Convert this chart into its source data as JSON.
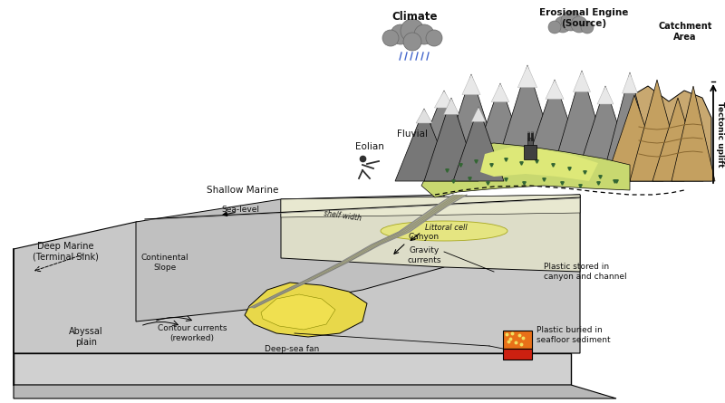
{
  "bg_color": "#f5f5f0",
  "figure_width": 8.0,
  "figure_height": 4.45,
  "labels": {
    "climate": "Climate",
    "erosional_engine": "Erosional Engine\n(Source)",
    "catchment_area": "Catchment\nArea",
    "eolian": "Eolian",
    "fluvial": "Fluvial",
    "shallow_marine": "Shallow Marine",
    "deep_marine": "Deep Marine\n(Terminal Sink)",
    "sea_level": "Sea-level",
    "continental_slope": "Continental\nSlope",
    "abyssal_plain": "Abyssal\nplain",
    "contour_currents": "Contour currents\n(reworked)",
    "deep_sea_fan": "Deep-sea fan",
    "canyon": "Canyon",
    "gravity_currents": "Gravity\ncurrents",
    "plastic_canyon": "Plastic stored in\ncanyon and channel",
    "plastic_buried": "Plastic buried in\nseafloor sediment",
    "littoral_cell": "Littoral cell",
    "shelf_width": "shelf width",
    "tectonic_uplift": "Tectonic uplift"
  }
}
